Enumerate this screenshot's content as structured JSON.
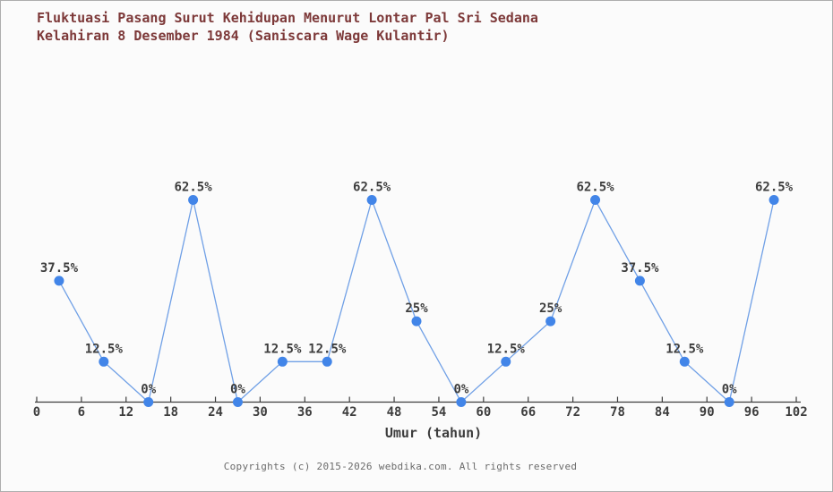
{
  "page": {
    "title_line1": "Fluktuasi Pasang Surut Kehidupan Menurut Lontar Pal Sri Sedana",
    "title_line2": "Kelahiran 8 Desember 1984 (Saniscara Wage Kulantir)",
    "footer": "Copyrights (c) 2015-2026 webdika.com. All rights reserved"
  },
  "chart_data": {
    "type": "line",
    "title": "Fluktuasi Pasang Surut Kehidupan Menurut Lontar Pal Sri Sedana Kelahiran 8 Desember 1984 (Saniscara Wage Kulantir)",
    "xlabel": "Umur (tahun)",
    "ylabel": "",
    "x": [
      3,
      9,
      15,
      21,
      27,
      33,
      39,
      45,
      51,
      57,
      63,
      69,
      75,
      81,
      87,
      93,
      99
    ],
    "values": [
      37.5,
      12.5,
      0,
      62.5,
      0,
      12.5,
      12.5,
      62.5,
      25,
      0,
      12.5,
      25,
      62.5,
      37.5,
      12.5,
      0,
      62.5
    ],
    "point_labels": [
      "37.5%",
      "12.5%",
      "0%",
      "62.5%",
      "0%",
      "12.5%",
      "12.5%",
      "62.5%",
      "25%",
      "0%",
      "12.5%",
      "25%",
      "62.5%",
      "37.5%",
      "12.5%",
      "0%",
      "62.5%"
    ],
    "x_ticks": [
      0,
      6,
      12,
      18,
      24,
      30,
      36,
      42,
      48,
      54,
      60,
      66,
      72,
      78,
      84,
      90,
      96,
      102
    ],
    "xlim": [
      0,
      102
    ],
    "ylim": [
      0,
      62.5
    ],
    "grid": false,
    "legend": null,
    "series_name": "Pasang surut kehidupan",
    "colors": {
      "line": "#70a0e6",
      "marker": "#4285e8",
      "axis": "#3d3d3d",
      "tick_label": "#3d3d3d",
      "point_label": "#3d3d3d",
      "title": "#7d3939",
      "footer": "#6b6b6b",
      "background": "#fbfbfb"
    }
  }
}
